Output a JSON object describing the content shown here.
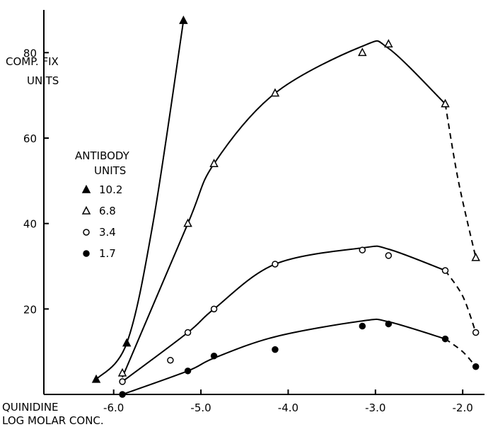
{
  "chart_data": {
    "type": "scatter",
    "ylabel": [
      "COMP. FIX",
      "UNITS"
    ],
    "xlabel": [
      "QUINIDINE",
      "LOG MOLAR CONC."
    ],
    "legend_title": [
      "ANTIBODY",
      "UNITS"
    ],
    "legend_position": "left",
    "xlim": [
      -6.8,
      -1.75
    ],
    "ylim": [
      0,
      90
    ],
    "xticks": [
      -6.0,
      -5.0,
      -4.0,
      -3.0,
      -2.0
    ],
    "xtick_labels": [
      "-6.0",
      "-5.0",
      "-4.0",
      "-3.0",
      "-2.0"
    ],
    "yticks": [
      20,
      40,
      60,
      80
    ],
    "ytick_labels": [
      "20",
      "40",
      "60",
      "80"
    ],
    "grid": false,
    "series": [
      {
        "name": "10.2",
        "marker": "filled-triangle",
        "points": [
          [
            -6.2,
            3.5
          ],
          [
            -5.85,
            12
          ],
          [
            -5.2,
            87.5
          ]
        ],
        "curve": [
          [
            -6.2,
            3.5
          ],
          [
            -5.85,
            12
          ],
          [
            -5.55,
            40
          ],
          [
            -5.2,
            87.5
          ]
        ]
      },
      {
        "name": "6.8",
        "marker": "open-triangle",
        "points": [
          [
            -5.9,
            5
          ],
          [
            -5.15,
            40
          ],
          [
            -4.85,
            54
          ],
          [
            -4.15,
            70.5
          ],
          [
            -3.15,
            80
          ],
          [
            -2.85,
            82
          ],
          [
            -2.2,
            68
          ],
          [
            -1.85,
            32
          ]
        ],
        "curve": [
          [
            -5.9,
            4
          ],
          [
            -5.15,
            40
          ],
          [
            -4.85,
            54
          ],
          [
            -4.15,
            70.5
          ],
          [
            -3.15,
            81.5
          ],
          [
            -2.85,
            81
          ],
          [
            -2.2,
            68
          ]
        ],
        "dashed_tail": [
          [
            -2.2,
            68
          ],
          [
            -2.05,
            50
          ],
          [
            -1.85,
            32
          ]
        ]
      },
      {
        "name": "3.4",
        "marker": "open-circle",
        "points": [
          [
            -5.9,
            3
          ],
          [
            -5.35,
            8
          ],
          [
            -5.15,
            14.5
          ],
          [
            -4.85,
            20
          ],
          [
            -4.15,
            30.5
          ],
          [
            -3.15,
            33.8
          ],
          [
            -2.85,
            32.5
          ],
          [
            -2.2,
            29
          ],
          [
            -1.85,
            14.5
          ]
        ],
        "curve": [
          [
            -5.9,
            3
          ],
          [
            -5.15,
            14.5
          ],
          [
            -4.85,
            20
          ],
          [
            -4.15,
            30.5
          ],
          [
            -3.15,
            34.3
          ],
          [
            -2.85,
            34
          ],
          [
            -2.2,
            29
          ]
        ],
        "dashed_tail": [
          [
            -2.2,
            29
          ],
          [
            -2.0,
            23
          ],
          [
            -1.85,
            14.5
          ]
        ]
      },
      {
        "name": "1.7",
        "marker": "filled-circle",
        "points": [
          [
            -5.9,
            0
          ],
          [
            -5.15,
            5.5
          ],
          [
            -4.85,
            9
          ],
          [
            -4.15,
            10.5
          ],
          [
            -3.15,
            16
          ],
          [
            -2.85,
            16.5
          ],
          [
            -2.2,
            13
          ],
          [
            -1.85,
            6.5
          ]
        ],
        "curve": [
          [
            -5.9,
            0
          ],
          [
            -5.15,
            5.5
          ],
          [
            -4.85,
            8.5
          ],
          [
            -4.15,
            13.5
          ],
          [
            -3.15,
            17.2
          ],
          [
            -2.85,
            17
          ],
          [
            -2.2,
            13
          ]
        ],
        "dashed_tail": [
          [
            -2.2,
            13
          ],
          [
            -2.0,
            10
          ],
          [
            -1.85,
            6.5
          ]
        ]
      }
    ]
  }
}
